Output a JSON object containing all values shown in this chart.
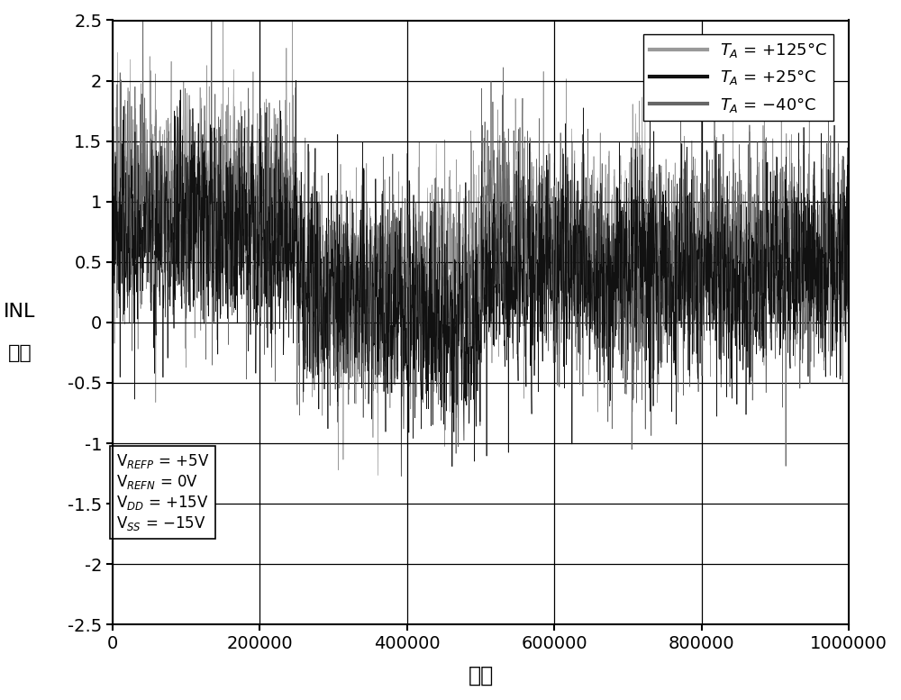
{
  "xlabel": "码値",
  "ylabel_line1": "INL",
  "ylabel_line2": "误差",
  "xlim": [
    0,
    1000000
  ],
  "ylim": [
    -2.5,
    2.5
  ],
  "xticks": [
    0,
    200000,
    400000,
    600000,
    800000,
    1000000
  ],
  "yticks": [
    -2.5,
    -2.0,
    -1.5,
    -1.0,
    -0.5,
    0.0,
    0.5,
    1.0,
    1.5,
    2.0,
    2.5
  ],
  "legend_colors_125": "#999999",
  "legend_colors_25": "#111111",
  "legend_colors_m40": "#666666",
  "bg_color": "#ffffff",
  "grid_color": "#000000",
  "fig_width": 10.0,
  "fig_height": 7.77,
  "dpi": 100,
  "seed": 42,
  "downsample": 400,
  "n_points": 1000000,
  "seg_bounds": [
    0,
    250000,
    500000,
    750000,
    1000000
  ],
  "seg_means_125": [
    1.05,
    0.3,
    0.65,
    0.6
  ],
  "seg_means_25": [
    0.75,
    0.1,
    0.45,
    0.4
  ],
  "seg_means_m40": [
    0.9,
    0.2,
    0.55,
    0.5
  ],
  "noise_std": 0.45,
  "annot_text_line1": "V$_{REFP}$ = +5V",
  "annot_text_line2": "V$_{REFN}$ = 0V",
  "annot_text_line3": "V$_{DD}$ = +15V",
  "annot_text_line4": "V$_{SS}$ = −15V"
}
